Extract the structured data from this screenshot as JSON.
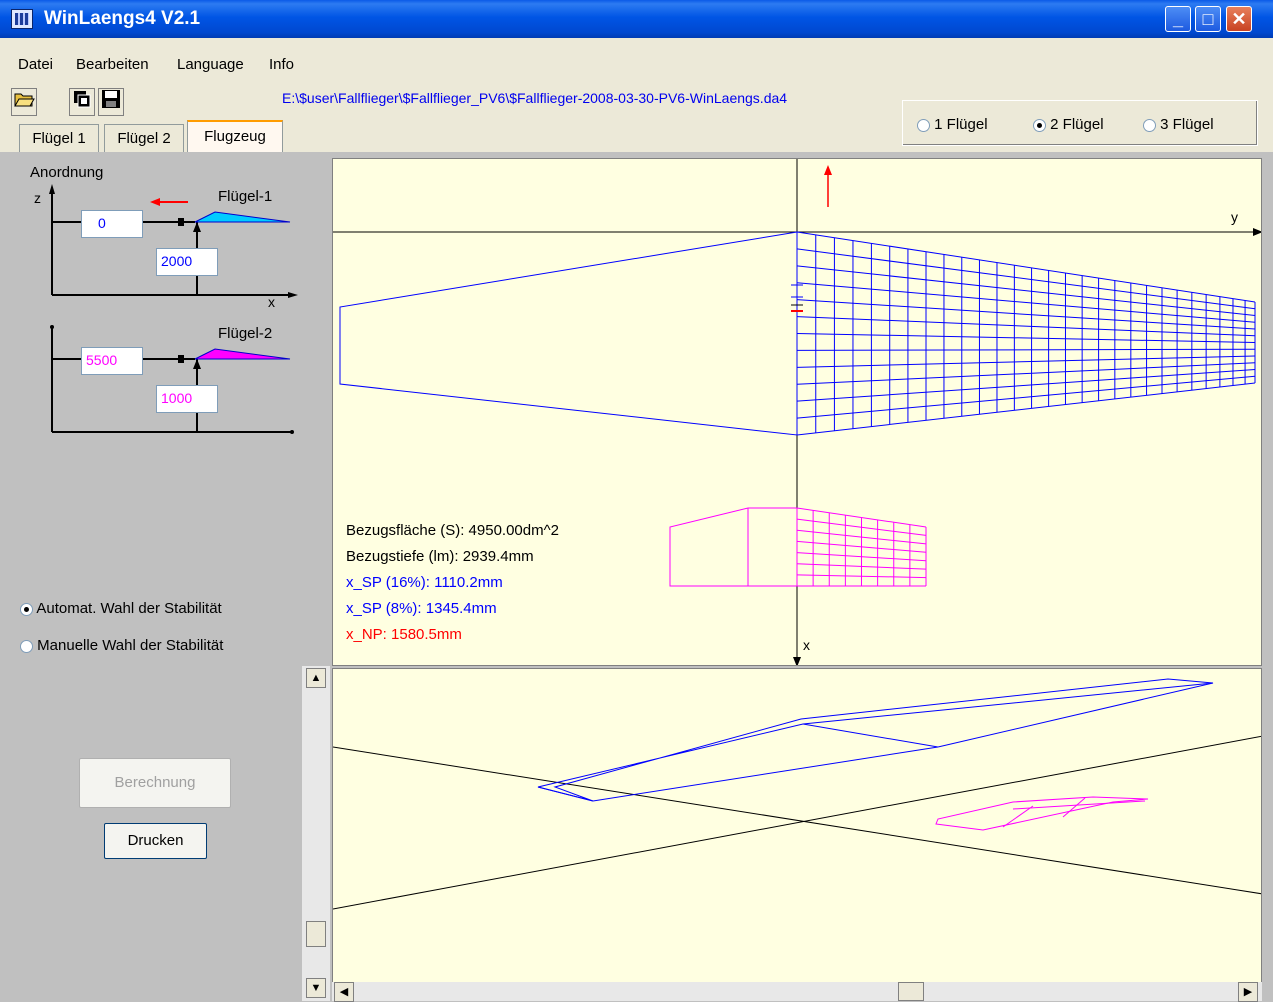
{
  "window": {
    "title": "WinLaengs4  V2.1",
    "min": "_",
    "max": "□",
    "close": "✕"
  },
  "menu": [
    "Datei",
    "Bearbeiten",
    "Language",
    "Info"
  ],
  "toolbar": {
    "open_icon": "open-folder-icon",
    "copy_icon": "copy-icon",
    "save_icon": "save-icon"
  },
  "filepath": "E:\\$user\\Fallflieger\\$Fallflieger_PV6\\$Fallflieger-2008-03-30-PV6-WinLaengs.da4",
  "wing_count": {
    "options": [
      "1 Flügel",
      "2 Flügel",
      "3 Flügel"
    ],
    "selected": "2 Flügel"
  },
  "tabs": [
    "Flügel 1",
    "Flügel 2",
    "Flugzeug"
  ],
  "active_tab": "Flugzeug",
  "arrangement": {
    "title": "Anordnung",
    "z_label": "z",
    "x_label": "x",
    "wing1": {
      "label": "Flügel-1",
      "z_value": "0",
      "x_value": "2000",
      "color": "#00ccff"
    },
    "wing2": {
      "label": "Flügel-2",
      "z_value": "5500",
      "x_value": "1000",
      "color": "#ff00ff"
    }
  },
  "stability": {
    "auto": "Automat. Wahl der Stabilität",
    "manual": "Manuelle Wahl der Stabilität",
    "selected": "auto"
  },
  "buttons": {
    "calculate": "Berechnung",
    "print": "Drucken"
  },
  "results": {
    "area": "Bezugsfläche (S): 4950.00dm^2",
    "chord": "Bezugstiefe (lm): 2939.4mm",
    "xsp16": "x_SP (16%): 1110.2mm",
    "xsp8": "x_SP (8%): 1345.4mm",
    "xnp": "x_NP: 1580.5mm"
  },
  "axes": {
    "y": "y",
    "x": "x"
  },
  "colors": {
    "wing1": "#0000ff",
    "wing2": "#ff00ff",
    "np": "#ff0000",
    "view_bg": "#ffffe1"
  }
}
